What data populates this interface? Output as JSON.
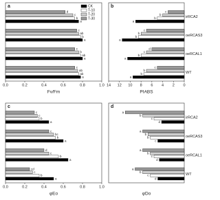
{
  "chart_data": [
    {
      "type": "bar",
      "label": "a",
      "xlabel": "Fv/Fm",
      "xlim": [
        0,
        1
      ],
      "xticks": [
        {
          "value": 0,
          "label": "0.0"
        },
        0.2,
        0.4,
        0.6,
        0.8,
        {
          "value": 1,
          "label": "1.0"
        }
      ],
      "legend": "upper right",
      "series": [
        {
          "name": "CK",
          "color": "#000000",
          "values": [
            0.78,
            0.8,
            0.8,
            0.76
          ],
          "letters": [
            "a",
            "a",
            "a",
            "a"
          ]
        },
        {
          "name": "T-10",
          "color": "#ffffff",
          "values": [
            0.76,
            0.78,
            0.78,
            0.72
          ],
          "letters": [
            "ab",
            "ab",
            "b",
            "b"
          ]
        },
        {
          "name": "T-20",
          "color": "#cfcfcf",
          "values": [
            0.75,
            0.76,
            0.76,
            0.7
          ],
          "letters": [
            "ab",
            "b",
            "ab",
            "c"
          ]
        },
        {
          "name": "T-30",
          "color": "#9a9a9a",
          "values": [
            0.72,
            0.72,
            0.74,
            0.62
          ],
          "letters": [
            "c",
            "c",
            "c",
            "d"
          ]
        }
      ]
    },
    {
      "type": "bar",
      "label": "b",
      "xlabel": "PIABS",
      "xlim": [
        14,
        0
      ],
      "xticks": [
        14,
        12,
        10,
        8,
        6,
        4,
        2,
        0
      ],
      "categories": [
        "WT",
        "oeRCAL1",
        "oeRCAS3",
        "irRCA2"
      ],
      "series": [
        {
          "color": "#000000",
          "values": [
            9.5,
            10.5,
            11.5,
            9
          ],
          "letters": [
            "a",
            "a",
            "a",
            "a"
          ]
        },
        {
          "color": "#ffffff",
          "values": [
            7.5,
            8,
            8.5,
            5
          ],
          "letters": [
            "b",
            "b",
            "b",
            "b"
          ]
        },
        {
          "color": "#cfcfcf",
          "values": [
            7,
            7,
            8,
            4
          ],
          "letters": [
            "b",
            "c",
            "b",
            "b"
          ]
        },
        {
          "color": "#9a9a9a",
          "values": [
            5,
            6,
            7,
            3
          ],
          "letters": [
            "c",
            "d",
            "c",
            "c"
          ]
        }
      ]
    },
    {
      "type": "bar",
      "label": "c",
      "xlabel": "φEo",
      "xlim": [
        0,
        1
      ],
      "xticks": [
        {
          "value": 0,
          "label": "0.0"
        },
        0.2,
        0.4,
        0.6,
        0.8,
        {
          "value": 1,
          "label": "1.0"
        }
      ],
      "series": [
        {
          "color": "#000000",
          "values": [
            0.5,
            0.65,
            0.6,
            0.45
          ],
          "letters": [
            "a",
            "a",
            "a",
            "a"
          ]
        },
        {
          "color": "#ffffff",
          "values": [
            0.35,
            0.55,
            0.52,
            0.35
          ],
          "letters": [
            "b",
            "b",
            "b",
            "b"
          ]
        },
        {
          "color": "#cfcfcf",
          "values": [
            0.28,
            0.45,
            0.5,
            0.33
          ],
          "letters": [
            "c",
            "c",
            "bc",
            "c"
          ]
        },
        {
          "color": "#9a9a9a",
          "values": [
            0.25,
            0.4,
            0.45,
            0.3
          ],
          "letters": [
            "cd",
            "d",
            "c",
            "c"
          ]
        }
      ]
    },
    {
      "type": "bar",
      "label": "d",
      "xlabel": "φDo",
      "xlim": [
        1,
        0
      ],
      "categories": [
        "WT",
        "oeRCAL1",
        "oeRCAS3",
        "irRCA2"
      ],
      "series": [
        {
          "color": "#000000",
          "values": [
            0.35,
            0.33,
            0.35,
            0.3
          ],
          "letters": [
            "d",
            "d",
            "c",
            "d"
          ]
        },
        {
          "color": "#ffffff",
          "values": [
            0.45,
            0.4,
            0.45,
            0.4
          ],
          "letters": [
            "c",
            "c",
            "b",
            "c"
          ]
        },
        {
          "color": "#cfcfcf",
          "values": [
            0.55,
            0.45,
            0.48,
            0.55
          ],
          "letters": [
            "b",
            "b",
            "b",
            "b"
          ]
        },
        {
          "color": "#9a9a9a",
          "values": [
            0.65,
            0.55,
            0.55,
            0.78
          ],
          "letters": [
            "a",
            "a",
            "a",
            "a"
          ]
        }
      ]
    }
  ]
}
